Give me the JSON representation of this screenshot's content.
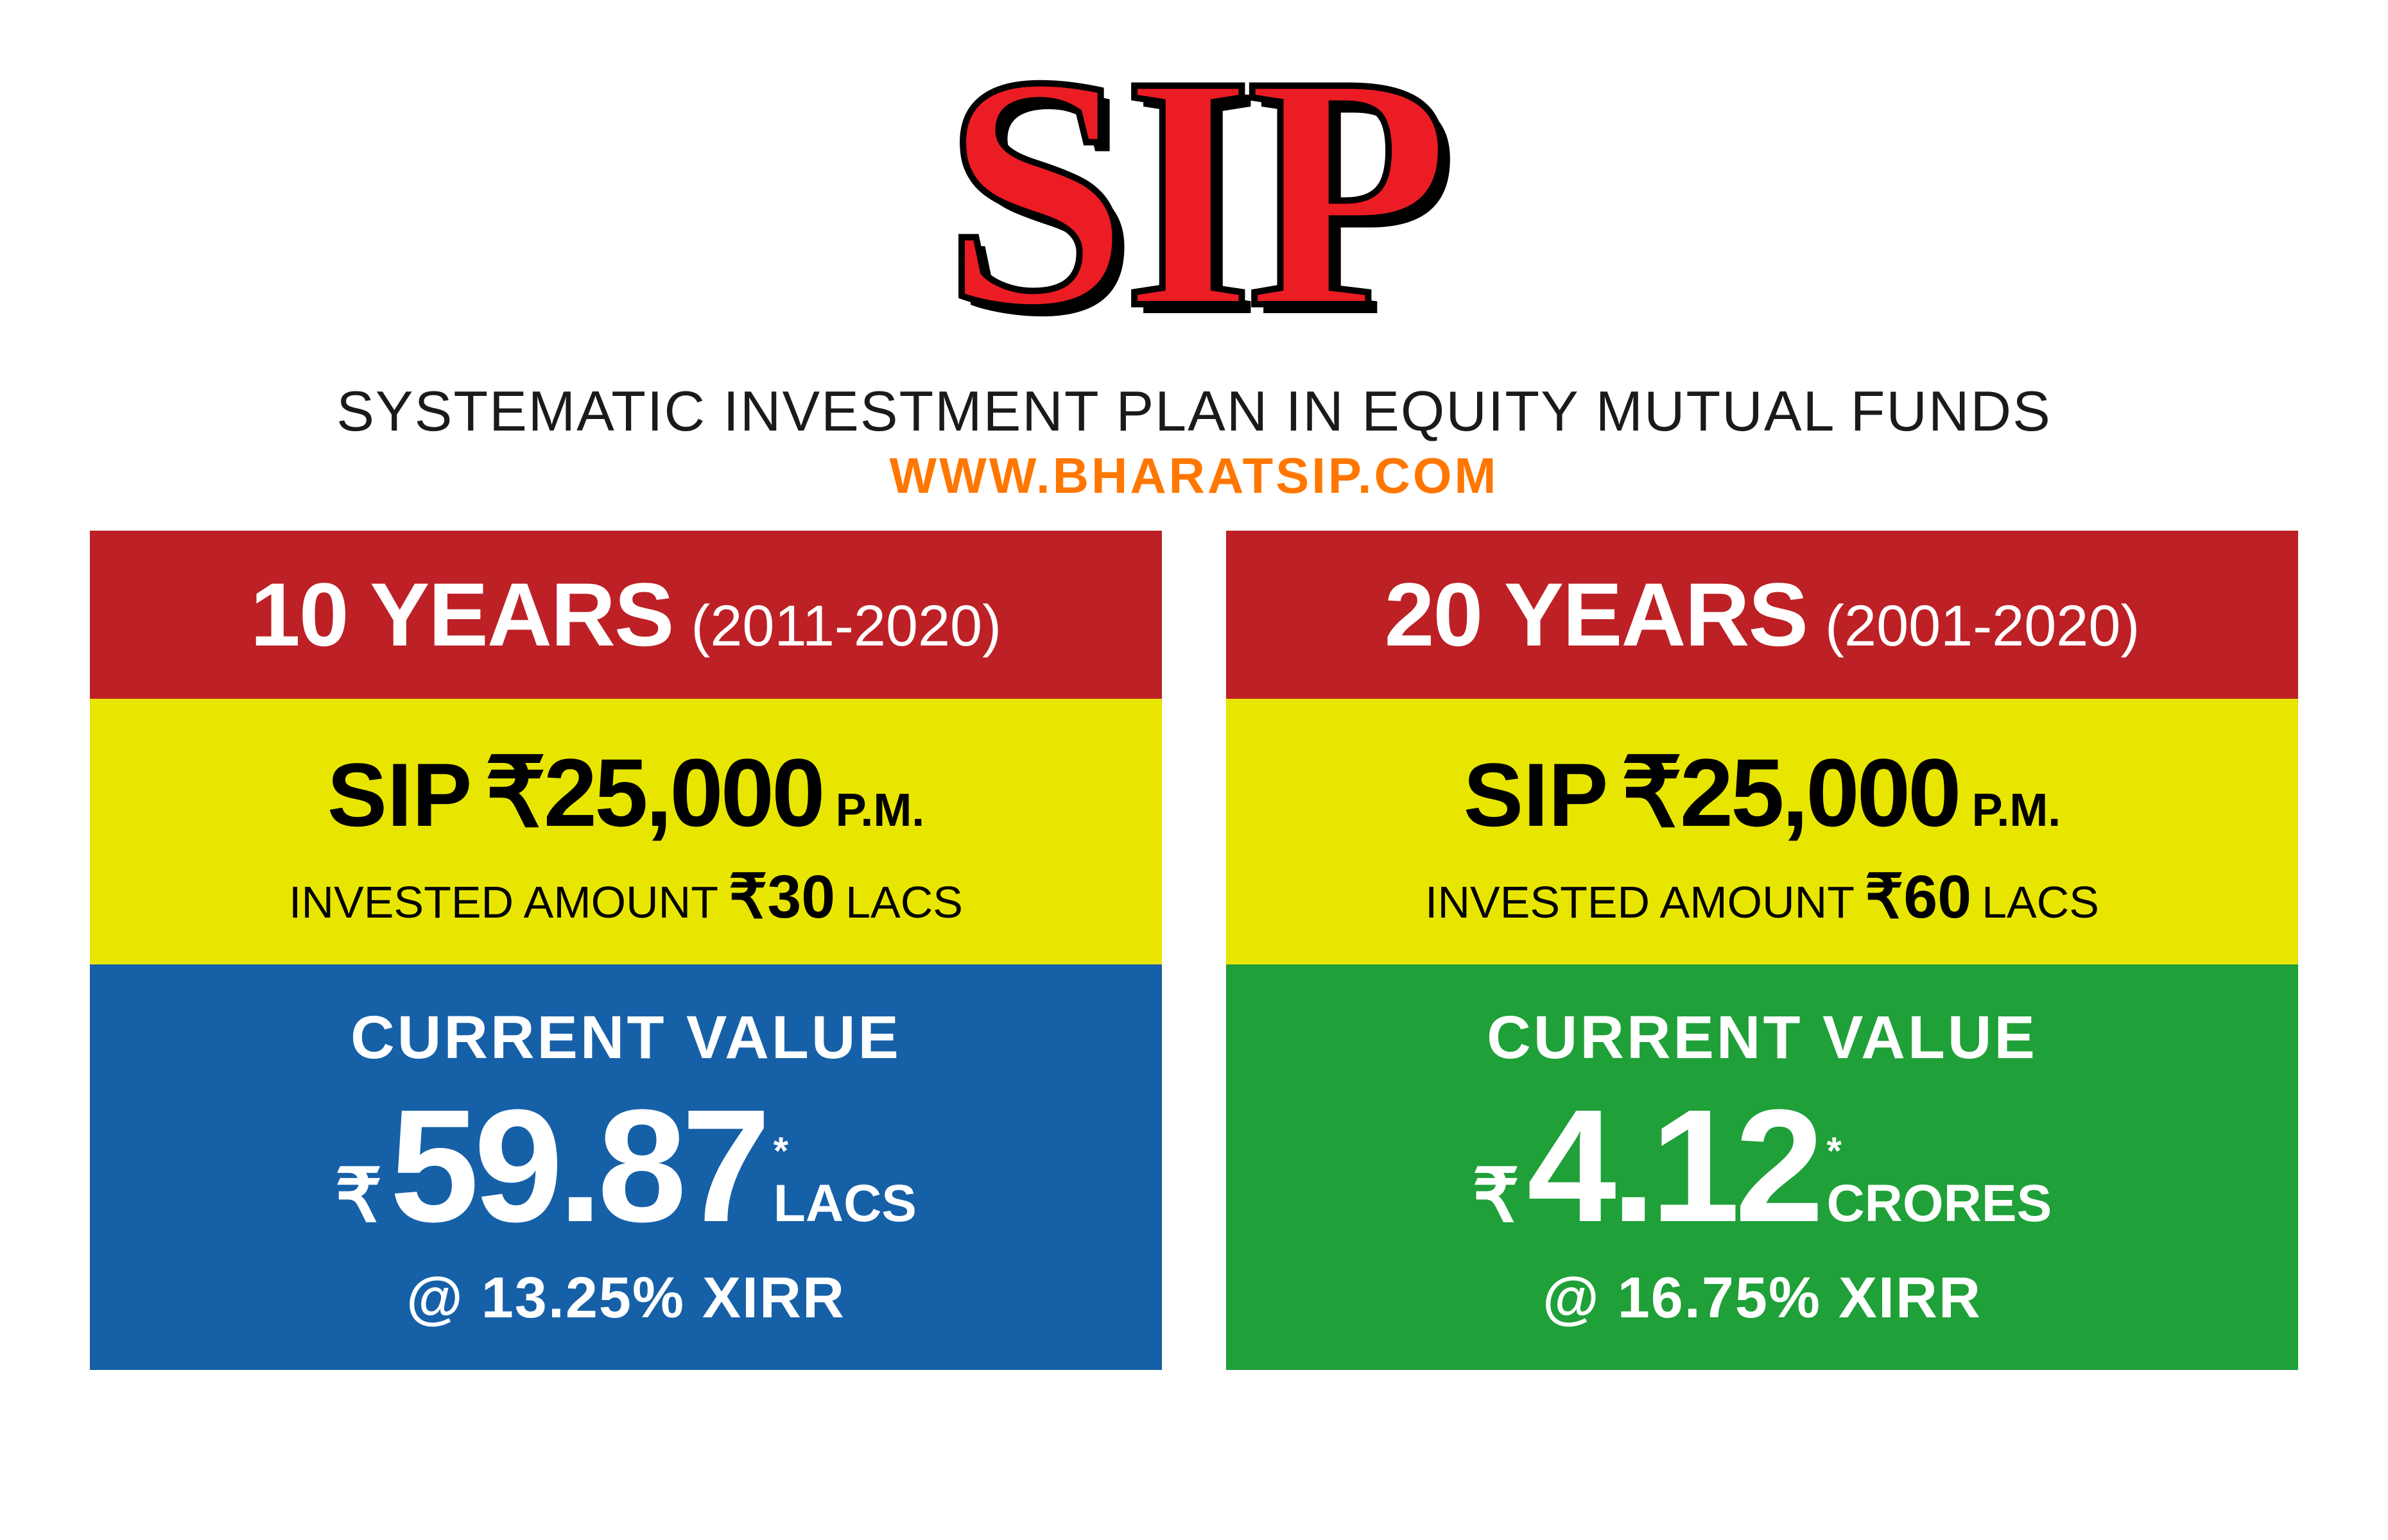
{
  "header": {
    "title": "SIP",
    "subtitle": "SYSTEMATIC INVESTMENT PLAN IN EQUITY MUTUAL FUNDS",
    "url": "WWW.BHARATSIP.COM",
    "title_color": "#ec1c24",
    "title_stroke": "#000000",
    "url_color": "#ff7700"
  },
  "cards": [
    {
      "years": "10 YEARS",
      "range": "(2011-2020)",
      "sip_label": "SIP",
      "sip_amount": "₹25,000",
      "sip_pm": "P.M.",
      "invested_label": "INVESTED AMOUNT",
      "invested_amount": "₹30",
      "invested_unit": "LACS",
      "cv_label": "CURRENT VALUE",
      "cv_rupee": "₹",
      "cv_value": "59.87",
      "cv_unit": "LACS",
      "cv_star": "*",
      "xirr": "@ 13.25% XIRR",
      "header_bg": "#bd2025",
      "mid_bg": "#e8e600",
      "bottom_bg": "#1660a8"
    },
    {
      "years": "20 YEARS",
      "range": "(2001-2020)",
      "sip_label": "SIP",
      "sip_amount": "₹25,000",
      "sip_pm": "P.M.",
      "invested_label": "INVESTED AMOUNT",
      "invested_amount": "₹60",
      "invested_unit": "LACS",
      "cv_label": "CURRENT VALUE",
      "cv_rupee": "₹",
      "cv_value": "4.12",
      "cv_unit": "CRORES",
      "cv_star": "*",
      "xirr": "@ 16.75% XIRR",
      "header_bg": "#bd2025",
      "mid_bg": "#e8e600",
      "bottom_bg": "#1fa038"
    }
  ],
  "typography": {
    "title_fontsize": 520,
    "subtitle_fontsize": 88,
    "url_fontsize": 78,
    "years_fontsize": 140,
    "range_fontsize": 90,
    "sip_amount_fontsize": 150,
    "cv_value_fontsize": 250
  }
}
